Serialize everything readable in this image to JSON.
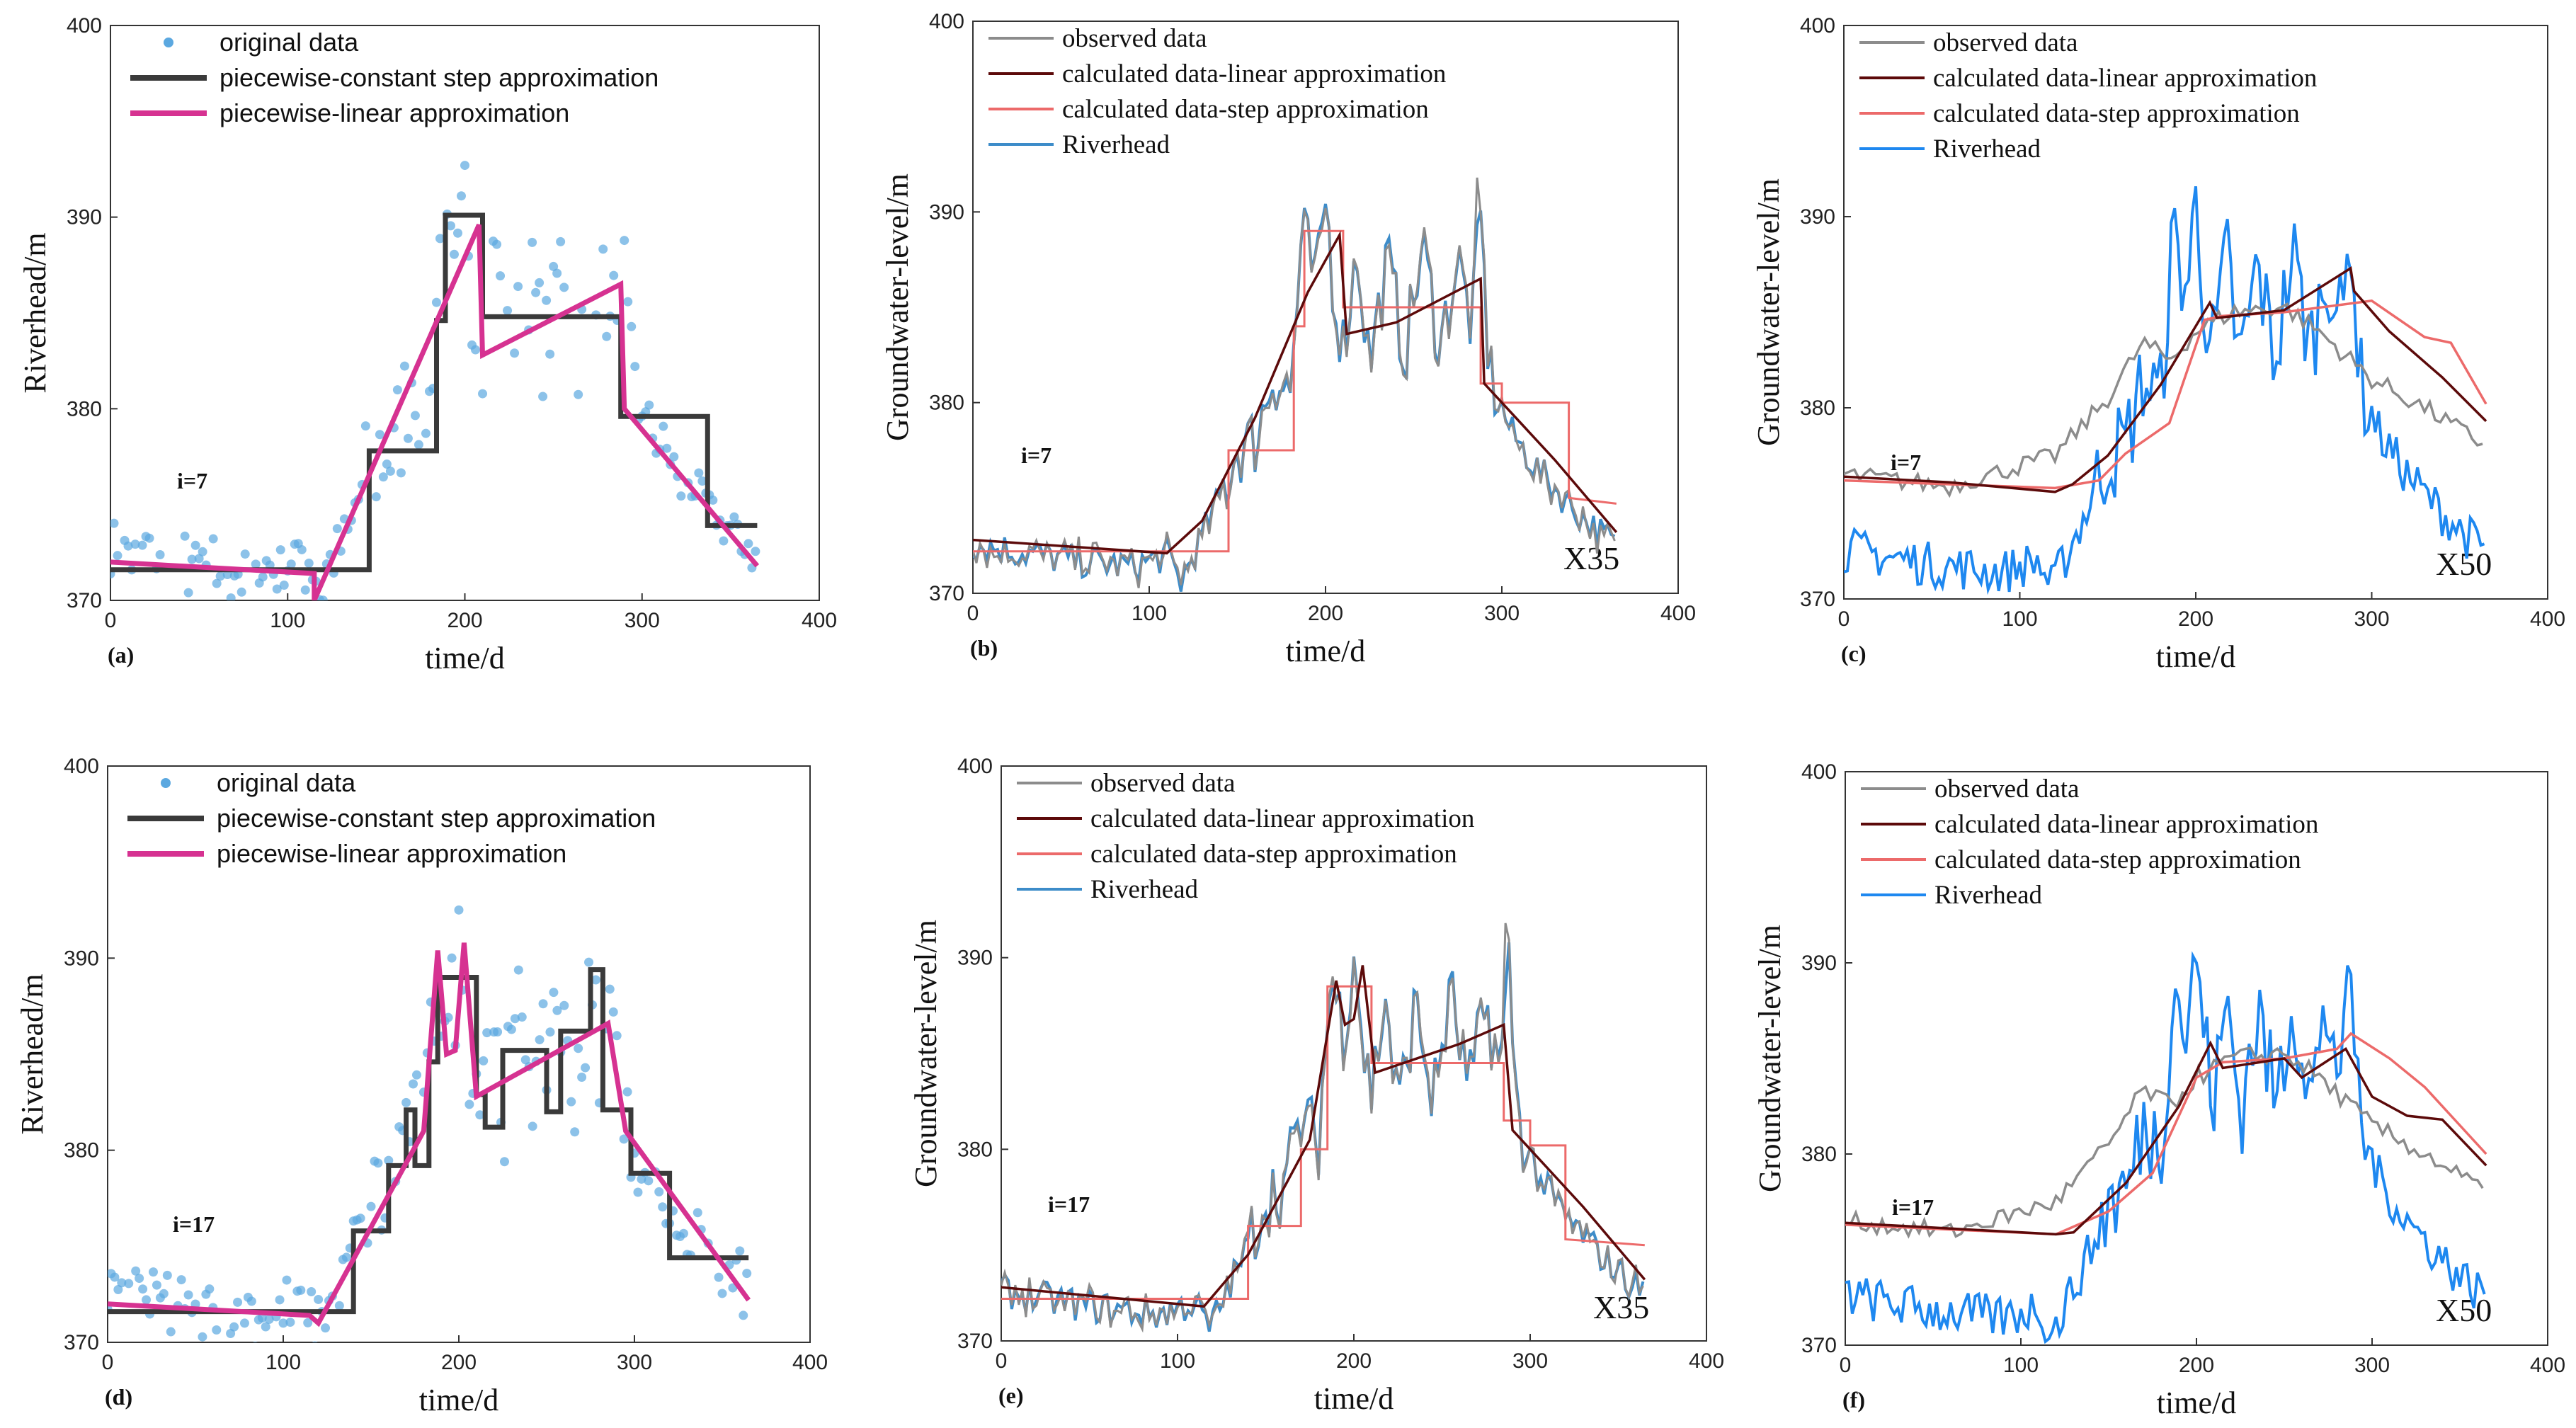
{
  "colors": {
    "original": "#5ba8e0",
    "step": "#3a3a3a",
    "linear": "#d63291",
    "observed": "#8c8c8c",
    "calc_linear": "#5c0a0a",
    "calc_step": "#ec6a6a",
    "riverhead_b": "#3d8cc9",
    "riverhead_c": "#1e88f0"
  },
  "chart_data": [
    {
      "id": "a",
      "type": "scatter+line",
      "panel_label": "(a)",
      "annotation": "i=7",
      "xlabel": "time/d",
      "ylabel": "Riverhead/m",
      "xlim": [
        0,
        400
      ],
      "ylim": [
        370,
        400
      ],
      "xticks": [
        "0",
        "100",
        "200",
        "300",
        "400"
      ],
      "yticks": [
        "370",
        "380",
        "390",
        "400"
      ],
      "legend": [
        "original data",
        "piecewise-constant step approximation",
        "piecewise-linear approximation"
      ],
      "series": [
        {
          "name": "piecewise-constant step approximation",
          "x": [
            0,
            146,
            146,
            184,
            184,
            189,
            189,
            210,
            210,
            288,
            288,
            337,
            337,
            365
          ],
          "y": [
            371.6,
            371.6,
            377.8,
            377.8,
            384.6,
            384.6,
            390.1,
            390.1,
            384.8,
            384.8,
            379.6,
            379.6,
            373.9,
            373.9
          ]
        },
        {
          "name": "piecewise-linear approximation",
          "x": [
            0,
            115,
            115,
            208,
            210,
            288,
            290,
            365
          ],
          "y": [
            372.0,
            371.4,
            370.0,
            389.6,
            382.8,
            386.5,
            380.0,
            371.8
          ]
        }
      ]
    },
    {
      "id": "b",
      "type": "line",
      "panel_label": "(b)",
      "annotation": "i=7",
      "station": "X35",
      "xlabel": "time/d",
      "ylabel": "Groundwater-level/m",
      "xlim": [
        0,
        400
      ],
      "ylim": [
        370,
        400
      ],
      "xticks": [
        "0",
        "100",
        "200",
        "300",
        "400"
      ],
      "yticks": [
        "370",
        "380",
        "390",
        "400"
      ],
      "legend": [
        "observed data",
        "calculated data-linear approximation",
        "calculated data-step approximation",
        "Riverhead"
      ],
      "series": [
        {
          "name": "calculated data-linear approximation",
          "x": [
            0,
            110,
            130,
            160,
            190,
            208,
            212,
            240,
            288,
            290,
            330,
            365
          ],
          "y": [
            372.8,
            372.1,
            373.8,
            379.2,
            385.8,
            388.8,
            383.6,
            384.2,
            386.5,
            381.0,
            377.0,
            373.2
          ]
        },
        {
          "name": "calculated data-step approximation",
          "x": [
            0,
            145,
            145,
            182,
            182,
            188,
            188,
            210,
            210,
            288,
            288,
            300,
            300,
            338,
            338,
            365
          ],
          "y": [
            372.2,
            372.2,
            377.5,
            377.5,
            384.0,
            384.0,
            389.0,
            389.0,
            385.0,
            385.0,
            381.0,
            381.0,
            380.0,
            380.0,
            375.0,
            374.7
          ]
        }
      ]
    },
    {
      "id": "c",
      "type": "line",
      "panel_label": "(c)",
      "annotation": "i=7",
      "station": "X50",
      "xlabel": "time/d",
      "ylabel": "Groundwater-level/m",
      "xlim": [
        0,
        400
      ],
      "ylim": [
        370,
        400
      ],
      "xticks": [
        "0",
        "100",
        "200",
        "300",
        "400"
      ],
      "yticks": [
        "370",
        "380",
        "390",
        "400"
      ],
      "legend": [
        "observed data",
        "calculated data-linear approximation",
        "calculated data-step approximation",
        "Riverhead"
      ],
      "series": [
        {
          "name": "observed data",
          "x": [
            0,
            60,
            120,
            150,
            170,
            185,
            200,
            220,
            250,
            270,
            300,
            330,
            365
          ],
          "y": [
            376.5,
            375.9,
            377.5,
            380.5,
            383.4,
            382.5,
            384.0,
            385.0,
            385.3,
            384.0,
            381.5,
            380.0,
            378.0
          ]
        },
        {
          "name": "calculated data-linear approximation",
          "x": [
            0,
            60,
            120,
            130,
            150,
            180,
            208,
            212,
            250,
            288,
            290,
            310,
            340,
            365
          ],
          "y": [
            376.4,
            376.1,
            375.6,
            376.0,
            377.5,
            381.2,
            385.5,
            384.7,
            385.1,
            387.3,
            386.1,
            384.0,
            381.6,
            379.3
          ]
        },
        {
          "name": "calculated data-step approximation",
          "x": [
            0,
            120,
            145,
            160,
            185,
            205,
            215,
            250,
            300,
            330,
            345,
            365
          ],
          "y": [
            376.2,
            375.8,
            376.2,
            377.6,
            379.2,
            384.6,
            384.8,
            385.0,
            385.6,
            383.7,
            383.4,
            380.2
          ]
        }
      ]
    },
    {
      "id": "d",
      "type": "scatter+line",
      "panel_label": "(d)",
      "annotation": "i=17",
      "xlabel": "time/d",
      "ylabel": "Riverhead/m",
      "xlim": [
        0,
        400
      ],
      "ylim": [
        370,
        400
      ],
      "xticks": [
        "0",
        "100",
        "200",
        "300",
        "400"
      ],
      "yticks": [
        "370",
        "380",
        "390",
        "400"
      ],
      "legend": [
        "original data",
        "piecewise-constant step approximation",
        "piecewise-linear approximation"
      ],
      "series": [
        {
          "name": "piecewise-constant step approximation",
          "x": [
            0,
            140,
            140,
            160,
            160,
            170,
            170,
            175,
            175,
            183,
            183,
            188,
            188,
            210,
            210,
            215,
            215,
            225,
            225,
            250,
            250,
            258,
            258,
            275,
            275,
            282,
            282,
            298,
            298,
            320,
            320,
            365
          ],
          "y": [
            371.6,
            371.6,
            375.8,
            375.8,
            379.2,
            379.2,
            382.1,
            382.1,
            379.2,
            379.2,
            384.6,
            384.6,
            389.0,
            389.0,
            382.9,
            382.9,
            381.2,
            381.2,
            385.2,
            385.2,
            382.0,
            382.0,
            386.2,
            386.2,
            389.4,
            389.4,
            382.1,
            382.1,
            378.8,
            378.8,
            374.4,
            374.4
          ]
        },
        {
          "name": "piecewise-linear approximation",
          "x": [
            0,
            115,
            120,
            180,
            188,
            193,
            198,
            203,
            210,
            285,
            295,
            365
          ],
          "y": [
            372.0,
            371.4,
            371.0,
            381.0,
            390.4,
            385.0,
            385.2,
            390.8,
            382.8,
            386.6,
            381.0,
            372.2
          ]
        }
      ]
    },
    {
      "id": "e",
      "type": "line",
      "panel_label": "(e)",
      "annotation": "i=17",
      "station": "X35",
      "xlabel": "time/d",
      "ylabel": "Groundwater-level/m",
      "xlim": [
        0,
        400
      ],
      "ylim": [
        370,
        400
      ],
      "xticks": [
        "0",
        "100",
        "200",
        "300",
        "400"
      ],
      "yticks": [
        "370",
        "380",
        "390",
        "400"
      ],
      "legend": [
        "observed data",
        "calculated data-linear approximation",
        "calculated data-step approximation",
        "Riverhead"
      ],
      "series": [
        {
          "name": "calculated data-linear approximation",
          "x": [
            0,
            115,
            140,
            175,
            190,
            195,
            200,
            205,
            212,
            260,
            285,
            290,
            330,
            365
          ],
          "y": [
            372.8,
            371.8,
            374.5,
            380.5,
            388.8,
            386.5,
            386.8,
            389.6,
            384.0,
            385.5,
            386.5,
            381.0,
            377.0,
            373.2
          ]
        },
        {
          "name": "calculated data-step approximation",
          "x": [
            0,
            140,
            140,
            170,
            170,
            185,
            185,
            210,
            210,
            285,
            285,
            300,
            300,
            320,
            320,
            365
          ],
          "y": [
            372.2,
            372.2,
            376.0,
            376.0,
            380.0,
            380.0,
            388.5,
            388.5,
            384.5,
            384.5,
            381.5,
            381.5,
            380.2,
            380.2,
            375.3,
            375.0
          ]
        }
      ]
    },
    {
      "id": "f",
      "type": "line",
      "panel_label": "(f)",
      "annotation": "i=17",
      "station": "X50",
      "xlabel": "time/d",
      "ylabel": "Groundwater-level/m",
      "xlim": [
        0,
        400
      ],
      "ylim": [
        370,
        400
      ],
      "xticks": [
        "0",
        "100",
        "200",
        "300",
        "400"
      ],
      "yticks": [
        "370",
        "380",
        "390",
        "400"
      ],
      "legend": [
        "observed data",
        "calculated data-linear approximation",
        "calculated data-step approximation",
        "Riverhead"
      ],
      "series": [
        {
          "name": "observed data",
          "x": [
            0,
            60,
            120,
            150,
            170,
            185,
            200,
            220,
            250,
            270,
            300,
            330,
            365
          ],
          "y": [
            376.5,
            375.9,
            377.5,
            380.5,
            383.4,
            382.5,
            384.0,
            385.0,
            385.3,
            384.0,
            381.5,
            380.0,
            378.0
          ]
        },
        {
          "name": "calculated data-linear approximation",
          "x": [
            0,
            60,
            120,
            130,
            160,
            190,
            208,
            215,
            250,
            260,
            285,
            300,
            320,
            340,
            365
          ],
          "y": [
            376.4,
            376.1,
            375.8,
            375.9,
            378.5,
            382.5,
            385.8,
            384.5,
            385.0,
            384.0,
            385.5,
            383.0,
            382.0,
            381.8,
            379.4
          ]
        },
        {
          "name": "calculated data-step approximation",
          "x": [
            0,
            120,
            150,
            175,
            200,
            215,
            250,
            280,
            288,
            310,
            330,
            345,
            365
          ],
          "y": [
            376.3,
            375.8,
            377.0,
            379.0,
            384.0,
            384.8,
            385.0,
            385.5,
            386.3,
            385.0,
            383.5,
            382.0,
            380.0
          ]
        }
      ]
    }
  ]
}
